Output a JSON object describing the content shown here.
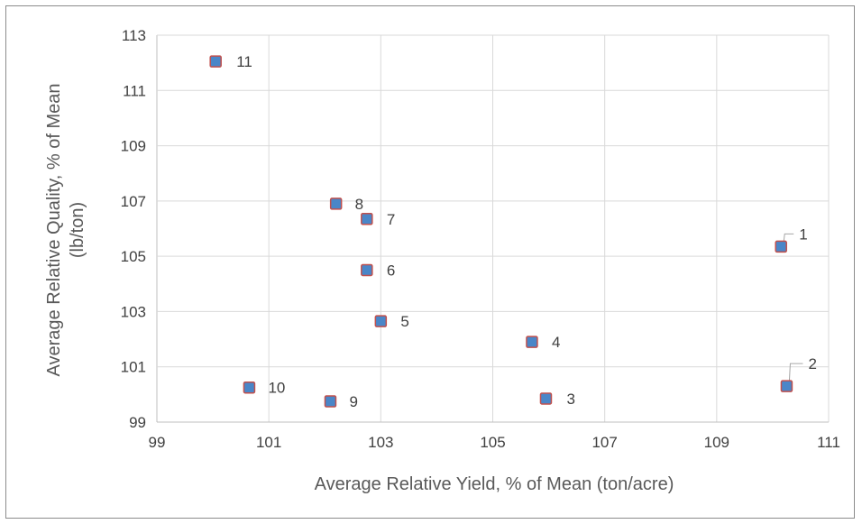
{
  "chart_data": {
    "type": "scatter",
    "title": "",
    "xlabel": "Average Relative Yield, % of Mean (ton/acre)",
    "ylabel_lines": [
      "Average Relative Quality, % of Mean",
      "(lb/ton)"
    ],
    "xlim": [
      99,
      111
    ],
    "ylim": [
      99,
      113
    ],
    "xticks": [
      "99",
      "101",
      "103",
      "105",
      "107",
      "109",
      "111"
    ],
    "yticks": [
      "99",
      "101",
      "103",
      "105",
      "107",
      "109",
      "111",
      "113"
    ],
    "grid": true,
    "legend": "none",
    "marker": "square",
    "marker_fill": "#4a86c8",
    "marker_edge": "#c0504d",
    "points": [
      {
        "label": "1",
        "x": 110.15,
        "y": 105.35
      },
      {
        "label": "2",
        "x": 110.25,
        "y": 100.3
      },
      {
        "label": "3",
        "x": 105.95,
        "y": 99.85
      },
      {
        "label": "4",
        "x": 105.7,
        "y": 101.9
      },
      {
        "label": "5",
        "x": 103.0,
        "y": 102.65
      },
      {
        "label": "6",
        "x": 102.75,
        "y": 104.5
      },
      {
        "label": "7",
        "x": 102.75,
        "y": 106.35
      },
      {
        "label": "8",
        "x": 102.2,
        "y": 106.9
      },
      {
        "label": "9",
        "x": 102.1,
        "y": 99.75
      },
      {
        "label": "10",
        "x": 100.65,
        "y": 100.25
      },
      {
        "label": "11",
        "x": 100.05,
        "y": 112.05
      }
    ]
  }
}
